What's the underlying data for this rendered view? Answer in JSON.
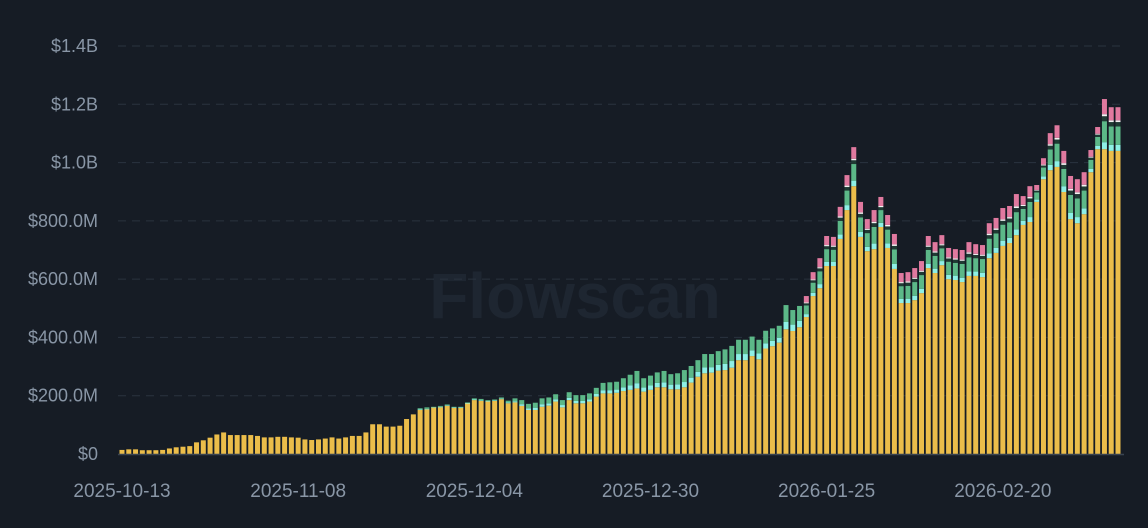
{
  "watermark": "Flowscan",
  "chart_data": {
    "type": "bar",
    "stacked": true,
    "title": "",
    "xlabel": "",
    "ylabel": "",
    "ylim": [
      0,
      1400
    ],
    "y_unit": "$M",
    "grid": true,
    "legend": "none",
    "y_ticks": [
      {
        "value": 0,
        "label": "$0"
      },
      {
        "value": 200,
        "label": "$200.0M"
      },
      {
        "value": 400,
        "label": "$400.0M"
      },
      {
        "value": 600,
        "label": "$600.0M"
      },
      {
        "value": 800,
        "label": "$800.0M"
      },
      {
        "value": 1000,
        "label": "$1.0B"
      },
      {
        "value": 1200,
        "label": "$1.2B"
      },
      {
        "value": 1400,
        "label": "$1.4B"
      }
    ],
    "x_start": "2025-10-13",
    "x_step_days": 1,
    "x_ticks": [
      {
        "index": 0,
        "label": "2025-10-13"
      },
      {
        "index": 26,
        "label": "2025-11-08"
      },
      {
        "index": 52,
        "label": "2025-12-04"
      },
      {
        "index": 78,
        "label": "2025-12-30"
      },
      {
        "index": 104,
        "label": "2026-01-25"
      },
      {
        "index": 130,
        "label": "2026-02-20"
      }
    ],
    "series": [
      {
        "name": "yellow",
        "color": "#ebbd4a",
        "values": [
          14,
          16,
          16,
          13,
          13,
          13,
          14,
          19,
          23,
          25,
          27,
          40,
          47,
          56,
          67,
          74,
          65,
          65,
          65,
          65,
          62,
          57,
          57,
          59,
          59,
          57,
          56,
          50,
          48,
          50,
          53,
          57,
          53,
          57,
          62,
          62,
          74,
          102,
          102,
          94,
          94,
          97,
          120,
          136,
          151,
          153,
          160,
          160,
          165,
          159,
          159,
          174,
          185,
          182,
          180,
          182,
          188,
          174,
          177,
          165,
          151,
          151,
          162,
          166,
          180,
          160,
          185,
          174,
          174,
          180,
          197,
          208,
          208,
          210,
          216,
          220,
          225,
          214,
          220,
          229,
          229,
          222,
          222,
          229,
          245,
          265,
          277,
          279,
          286,
          288,
          296,
          322,
          322,
          336,
          325,
          362,
          370,
          382,
          428,
          422,
          435,
          470,
          542,
          569,
          645,
          645,
          738,
          837,
          919,
          745,
          696,
          703,
          779,
          707,
          635,
          518,
          518,
          528,
          552,
          638,
          621,
          648,
          600,
          597,
          590,
          611,
          611,
          607,
          672,
          690,
          714,
          724,
          751,
          786,
          796,
          865,
          943,
          974,
          985,
          899,
          806,
          792,
          823,
          967,
          1046,
          1046,
          1040,
          1040
        ]
      },
      {
        "name": "cyan",
        "color": "#8ef0e6",
        "values": [
          0,
          0,
          0,
          0,
          0,
          0,
          0,
          0,
          0,
          0,
          0,
          0,
          0,
          0,
          0,
          0,
          0,
          0,
          0,
          0,
          0,
          0,
          0,
          0,
          0,
          0,
          0,
          0,
          0,
          0,
          0,
          0,
          0,
          0,
          0,
          0,
          0,
          0,
          0,
          0,
          0,
          0,
          0,
          0,
          2,
          2,
          1,
          2,
          2,
          1,
          1,
          1,
          2,
          2,
          2,
          2,
          2,
          3,
          4,
          6,
          6,
          8,
          9,
          8,
          8,
          8,
          8,
          8,
          8,
          8,
          9,
          11,
          11,
          11,
          13,
          16,
          18,
          14,
          15,
          15,
          17,
          16,
          17,
          18,
          17,
          17,
          20,
          19,
          20,
          21,
          23,
          21,
          21,
          20,
          20,
          18,
          18,
          17,
          25,
          22,
          22,
          10,
          11,
          14,
          14,
          14,
          15,
          17,
          19,
          17,
          15,
          19,
          14,
          16,
          17,
          14,
          15,
          15,
          15,
          15,
          15,
          14,
          15,
          15,
          15,
          16,
          15,
          15,
          17,
          17,
          18,
          18,
          20,
          14,
          17,
          8,
          10,
          18,
          20,
          20,
          21,
          21,
          20,
          11,
          11,
          24,
          21,
          21
        ]
      },
      {
        "name": "green",
        "color": "#5cb888",
        "values": [
          0,
          0,
          0,
          0,
          0,
          0,
          0,
          0,
          0,
          0,
          0,
          0,
          0,
          0,
          0,
          0,
          0,
          0,
          0,
          0,
          0,
          0,
          0,
          0,
          0,
          0,
          0,
          0,
          0,
          0,
          0,
          0,
          0,
          0,
          0,
          0,
          0,
          0,
          0,
          0,
          0,
          0,
          0,
          0,
          4,
          5,
          1,
          3,
          3,
          2,
          2,
          2,
          4,
          5,
          3,
          3,
          4,
          6,
          10,
          14,
          15,
          17,
          20,
          20,
          17,
          17,
          19,
          20,
          20,
          20,
          21,
          25,
          27,
          27,
          31,
          36,
          42,
          32,
          34,
          36,
          39,
          36,
          38,
          41,
          40,
          40,
          46,
          45,
          47,
          50,
          52,
          49,
          49,
          47,
          47,
          43,
          43,
          41,
          58,
          50,
          51,
          30,
          35,
          44,
          44,
          42,
          47,
          50,
          57,
          50,
          47,
          57,
          44,
          47,
          50,
          44,
          44,
          47,
          47,
          47,
          44,
          44,
          45,
          44,
          47,
          48,
          46,
          47,
          50,
          50,
          55,
          53,
          59,
          41,
          52,
          25,
          30,
          53,
          60,
          59,
          62,
          64,
          61,
          31,
          31,
          72,
          63,
          63
        ]
      },
      {
        "name": "dark",
        "color": "#1f3a33",
        "values": [
          0,
          0,
          0,
          0,
          0,
          0,
          0,
          0,
          0,
          0,
          0,
          0,
          0,
          0,
          0,
          0,
          0,
          0,
          0,
          0,
          0,
          0,
          0,
          0,
          0,
          0,
          0,
          0,
          0,
          0,
          0,
          0,
          0,
          0,
          0,
          0,
          0,
          0,
          0,
          0,
          0,
          0,
          0,
          0,
          0,
          0,
          0,
          0,
          0,
          0,
          0,
          0,
          0,
          0,
          0,
          0,
          0,
          0,
          0,
          0,
          0,
          0,
          0,
          0,
          0,
          0,
          0,
          0,
          0,
          0,
          0,
          0,
          0,
          0,
          0,
          0,
          0,
          0,
          0,
          0,
          0,
          0,
          0,
          0,
          0,
          0,
          0,
          0,
          0,
          0,
          0,
          0,
          0,
          0,
          0,
          0,
          0,
          0,
          0,
          0,
          0,
          7,
          8,
          10,
          10,
          10,
          11,
          12,
          13,
          12,
          11,
          13,
          10,
          11,
          12,
          10,
          11,
          11,
          11,
          11,
          11,
          10,
          11,
          11,
          11,
          12,
          11,
          11,
          12,
          12,
          13,
          13,
          14,
          10,
          12,
          6,
          7,
          13,
          14,
          14,
          15,
          15,
          14,
          8,
          8,
          17,
          15,
          15
        ]
      },
      {
        "name": "white",
        "color": "#f2f2f2",
        "values": [
          0,
          0,
          0,
          0,
          0,
          0,
          0,
          0,
          0,
          0,
          0,
          0,
          0,
          0,
          0,
          0,
          0,
          0,
          0,
          0,
          0,
          0,
          0,
          0,
          0,
          0,
          0,
          0,
          0,
          0,
          0,
          0,
          0,
          0,
          0,
          0,
          0,
          0,
          0,
          0,
          0,
          0,
          0,
          0,
          0,
          0,
          0,
          0,
          0,
          0,
          0,
          0,
          0,
          0,
          0,
          0,
          0,
          0,
          0,
          0,
          0,
          0,
          0,
          0,
          0,
          0,
          0,
          0,
          0,
          0,
          0,
          0,
          0,
          0,
          0,
          0,
          0,
          0,
          0,
          0,
          0,
          0,
          0,
          0,
          0,
          0,
          0,
          0,
          0,
          0,
          0,
          0,
          0,
          0,
          0,
          0,
          0,
          0,
          0,
          0,
          0,
          3,
          3,
          4,
          4,
          4,
          4,
          5,
          5,
          5,
          4,
          5,
          4,
          5,
          5,
          4,
          4,
          4,
          4,
          4,
          4,
          4,
          4,
          4,
          4,
          5,
          4,
          4,
          5,
          5,
          5,
          5,
          6,
          4,
          5,
          2,
          3,
          5,
          6,
          6,
          6,
          6,
          6,
          3,
          3,
          7,
          6,
          6
        ]
      },
      {
        "name": "pink",
        "color": "#e0799f",
        "values": [
          0,
          0,
          0,
          0,
          0,
          0,
          0,
          0,
          0,
          0,
          0,
          0,
          0,
          0,
          0,
          0,
          0,
          0,
          0,
          0,
          0,
          0,
          0,
          0,
          0,
          0,
          0,
          0,
          0,
          0,
          0,
          0,
          0,
          0,
          0,
          0,
          0,
          0,
          0,
          0,
          0,
          0,
          0,
          0,
          0,
          0,
          0,
          0,
          0,
          0,
          0,
          0,
          0,
          0,
          0,
          0,
          0,
          0,
          0,
          0,
          0,
          0,
          0,
          0,
          0,
          0,
          0,
          0,
          0,
          0,
          0,
          0,
          0,
          0,
          0,
          0,
          0,
          0,
          0,
          0,
          0,
          0,
          0,
          0,
          0,
          0,
          0,
          0,
          0,
          0,
          0,
          0,
          0,
          0,
          0,
          0,
          0,
          0,
          0,
          0,
          0,
          22,
          25,
          31,
          31,
          30,
          33,
          36,
          40,
          36,
          33,
          40,
          31,
          34,
          36,
          31,
          32,
          33,
          33,
          33,
          32,
          31,
          32,
          32,
          33,
          35,
          33,
          33,
          36,
          36,
          39,
          38,
          42,
          30,
          37,
          17,
          22,
          38,
          43,
          42,
          44,
          45,
          43,
          23,
          23,
          52,
          45,
          45
        ]
      }
    ]
  }
}
